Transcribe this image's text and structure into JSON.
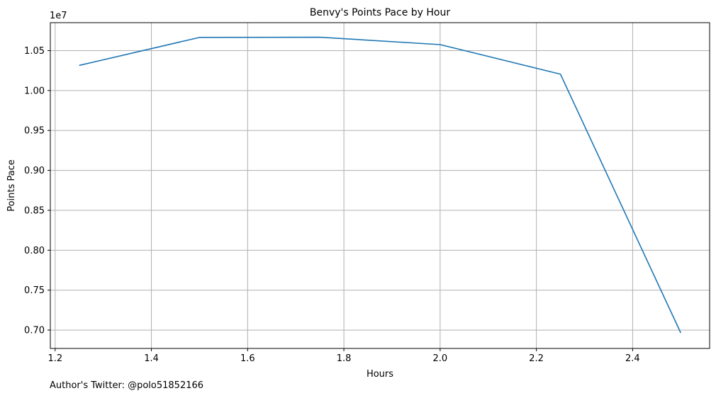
{
  "chart_data": {
    "type": "line",
    "title": "Benvy's Points Pace by Hour",
    "xlabel": "Hours",
    "ylabel": "Points Pace",
    "y_offset_label": "1e7",
    "xlim": [
      1.19,
      2.56
    ],
    "ylim": [
      0.677,
      1.085
    ],
    "x_ticks": [
      1.2,
      1.4,
      1.6,
      1.8,
      2.0,
      2.2,
      2.4
    ],
    "x_tick_labels": [
      "1.2",
      "1.4",
      "1.6",
      "1.8",
      "2.0",
      "2.2",
      "2.4"
    ],
    "y_ticks": [
      0.7,
      0.75,
      0.8,
      0.85,
      0.9,
      0.95,
      1.0,
      1.05
    ],
    "y_tick_labels": [
      "0.70",
      "0.75",
      "0.80",
      "0.85",
      "0.90",
      "0.95",
      "1.00",
      "1.05"
    ],
    "grid": true,
    "series": [
      {
        "color": "#1f77b4",
        "x": [
          1.25,
          1.5,
          1.75,
          2.0,
          2.25,
          2.5
        ],
        "y": [
          1.0315,
          1.0665,
          1.0668,
          1.0575,
          1.0205,
          0.6965
        ]
      }
    ]
  },
  "footer": {
    "note": "Author's Twitter: @polo51852166"
  }
}
